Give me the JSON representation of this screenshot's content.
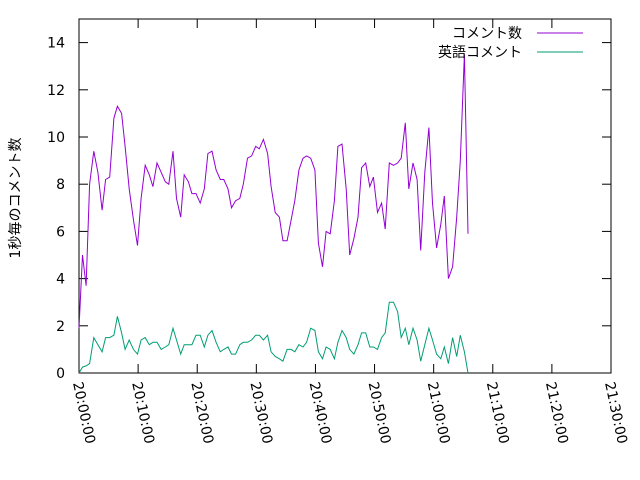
{
  "chart_data": {
    "type": "line",
    "ylabel": "1秒毎のコメント数",
    "ylim": [
      0,
      15
    ],
    "yticks": [
      "0",
      "2",
      "4",
      "6",
      "8",
      "10",
      "12",
      "14"
    ],
    "xlim_minutes": [
      0,
      90
    ],
    "xticks": [
      "20:00:00",
      "20:10:00",
      "20:20:00",
      "20:30:00",
      "20:40:00",
      "20:50:00",
      "21:00:00",
      "21:10:00",
      "21:20:00",
      "21:30:00"
    ],
    "legend_position": "top-right",
    "grid": false,
    "series": [
      {
        "name": "コメント数",
        "color": "#9400d3",
        "points": [
          [
            0,
            1.9
          ],
          [
            0.6,
            5.0
          ],
          [
            1.2,
            3.7
          ],
          [
            1.8,
            8.0
          ],
          [
            2.5,
            9.4
          ],
          [
            3.2,
            8.5
          ],
          [
            3.9,
            6.9
          ],
          [
            4.5,
            8.2
          ],
          [
            5.2,
            8.3
          ],
          [
            5.9,
            10.8
          ],
          [
            6.5,
            11.3
          ],
          [
            7.2,
            11.0
          ],
          [
            7.8,
            9.6
          ],
          [
            8.5,
            7.8
          ],
          [
            9.2,
            6.5
          ],
          [
            9.9,
            5.4
          ],
          [
            10.5,
            7.4
          ],
          [
            11.2,
            8.8
          ],
          [
            11.9,
            8.4
          ],
          [
            12.5,
            7.9
          ],
          [
            13.2,
            8.9
          ],
          [
            13.9,
            8.5
          ],
          [
            14.6,
            8.1
          ],
          [
            15.2,
            8.0
          ],
          [
            15.9,
            9.4
          ],
          [
            16.5,
            7.4
          ],
          [
            17.2,
            6.6
          ],
          [
            17.8,
            8.4
          ],
          [
            18.5,
            8.1
          ],
          [
            19.1,
            7.6
          ],
          [
            19.8,
            7.6
          ],
          [
            20.5,
            7.2
          ],
          [
            21.2,
            7.8
          ],
          [
            21.8,
            9.3
          ],
          [
            22.5,
            9.4
          ],
          [
            23.2,
            8.6
          ],
          [
            23.9,
            8.2
          ],
          [
            24.5,
            8.2
          ],
          [
            25.2,
            7.8
          ],
          [
            25.8,
            7.0
          ],
          [
            26.5,
            7.3
          ],
          [
            27.2,
            7.4
          ],
          [
            27.8,
            8.0
          ],
          [
            28.5,
            9.1
          ],
          [
            29.2,
            9.2
          ],
          [
            29.9,
            9.6
          ],
          [
            30.5,
            9.5
          ],
          [
            31.2,
            9.9
          ],
          [
            31.9,
            9.3
          ],
          [
            32.5,
            7.9
          ],
          [
            33.2,
            6.8
          ],
          [
            33.9,
            6.6
          ],
          [
            34.5,
            5.6
          ],
          [
            35.2,
            5.6
          ],
          [
            35.9,
            6.5
          ],
          [
            36.5,
            7.3
          ],
          [
            37.2,
            8.6
          ],
          [
            37.9,
            9.1
          ],
          [
            38.5,
            9.2
          ],
          [
            39.2,
            9.1
          ],
          [
            39.9,
            8.6
          ],
          [
            40.5,
            5.5
          ],
          [
            41.2,
            4.5
          ],
          [
            41.8,
            6.0
          ],
          [
            42.5,
            5.9
          ],
          [
            43.2,
            7.3
          ],
          [
            43.8,
            9.6
          ],
          [
            44.5,
            9.7
          ],
          [
            45.2,
            7.8
          ],
          [
            45.8,
            5.0
          ],
          [
            46.5,
            5.7
          ],
          [
            47.2,
            6.6
          ],
          [
            47.8,
            8.7
          ],
          [
            48.5,
            8.9
          ],
          [
            49.2,
            7.9
          ],
          [
            49.8,
            8.3
          ],
          [
            50.5,
            6.8
          ],
          [
            51.2,
            7.2
          ],
          [
            51.8,
            6.1
          ],
          [
            52.5,
            8.9
          ],
          [
            53.2,
            8.8
          ],
          [
            53.9,
            8.9
          ],
          [
            54.5,
            9.1
          ],
          [
            55.2,
            10.6
          ],
          [
            55.8,
            7.8
          ],
          [
            56.5,
            8.9
          ],
          [
            57.2,
            8.2
          ],
          [
            57.8,
            5.2
          ],
          [
            58.5,
            8.5
          ],
          [
            59.2,
            10.4
          ],
          [
            59.8,
            7.2
          ],
          [
            60.5,
            5.3
          ],
          [
            61.2,
            6.3
          ],
          [
            61.8,
            7.5
          ],
          [
            62.5,
            4.0
          ],
          [
            63.2,
            4.5
          ],
          [
            63.9,
            6.6
          ],
          [
            64.5,
            9.0
          ],
          [
            65.2,
            13.5
          ],
          [
            65.8,
            5.9
          ]
        ]
      },
      {
        "name": "英語コメント",
        "color": "#009e73",
        "points": [
          [
            0,
            0
          ],
          [
            0.6,
            0.25
          ],
          [
            1.2,
            0.3
          ],
          [
            1.8,
            0.4
          ],
          [
            2.5,
            1.5
          ],
          [
            3.2,
            1.2
          ],
          [
            3.9,
            0.9
          ],
          [
            4.5,
            1.5
          ],
          [
            5.2,
            1.5
          ],
          [
            5.9,
            1.6
          ],
          [
            6.5,
            2.4
          ],
          [
            7.2,
            1.7
          ],
          [
            7.8,
            1.0
          ],
          [
            8.5,
            1.4
          ],
          [
            9.2,
            1.0
          ],
          [
            9.9,
            0.8
          ],
          [
            10.5,
            1.4
          ],
          [
            11.2,
            1.5
          ],
          [
            11.9,
            1.2
          ],
          [
            12.5,
            1.3
          ],
          [
            13.2,
            1.3
          ],
          [
            13.9,
            1.0
          ],
          [
            14.6,
            1.1
          ],
          [
            15.2,
            1.2
          ],
          [
            15.9,
            1.9
          ],
          [
            16.5,
            1.4
          ],
          [
            17.2,
            0.8
          ],
          [
            17.8,
            1.2
          ],
          [
            18.5,
            1.2
          ],
          [
            19.1,
            1.2
          ],
          [
            19.8,
            1.6
          ],
          [
            20.5,
            1.6
          ],
          [
            21.2,
            1.1
          ],
          [
            21.8,
            1.6
          ],
          [
            22.5,
            1.8
          ],
          [
            23.2,
            1.3
          ],
          [
            23.9,
            0.9
          ],
          [
            24.5,
            1.0
          ],
          [
            25.2,
            1.1
          ],
          [
            25.8,
            0.8
          ],
          [
            26.5,
            0.8
          ],
          [
            27.2,
            1.2
          ],
          [
            27.8,
            1.3
          ],
          [
            28.5,
            1.3
          ],
          [
            29.2,
            1.4
          ],
          [
            29.9,
            1.6
          ],
          [
            30.5,
            1.6
          ],
          [
            31.2,
            1.4
          ],
          [
            31.9,
            1.6
          ],
          [
            32.5,
            0.9
          ],
          [
            33.2,
            0.7
          ],
          [
            33.9,
            0.6
          ],
          [
            34.5,
            0.5
          ],
          [
            35.2,
            1.0
          ],
          [
            35.9,
            1.0
          ],
          [
            36.5,
            0.9
          ],
          [
            37.2,
            1.2
          ],
          [
            37.9,
            1.1
          ],
          [
            38.5,
            1.3
          ],
          [
            39.2,
            1.9
          ],
          [
            39.9,
            1.8
          ],
          [
            40.5,
            0.9
          ],
          [
            41.2,
            0.6
          ],
          [
            41.8,
            1.1
          ],
          [
            42.5,
            1.0
          ],
          [
            43.2,
            0.6
          ],
          [
            43.8,
            1.3
          ],
          [
            44.5,
            1.8
          ],
          [
            45.2,
            1.5
          ],
          [
            45.8,
            1.0
          ],
          [
            46.5,
            0.8
          ],
          [
            47.2,
            1.2
          ],
          [
            47.8,
            1.7
          ],
          [
            48.5,
            1.7
          ],
          [
            49.2,
            1.1
          ],
          [
            49.8,
            1.1
          ],
          [
            50.5,
            1.0
          ],
          [
            51.2,
            1.5
          ],
          [
            51.8,
            1.7
          ],
          [
            52.5,
            3.0
          ],
          [
            53.2,
            3.0
          ],
          [
            53.9,
            2.6
          ],
          [
            54.5,
            1.5
          ],
          [
            55.2,
            1.9
          ],
          [
            55.8,
            1.2
          ],
          [
            56.5,
            1.9
          ],
          [
            57.2,
            1.4
          ],
          [
            57.8,
            0.5
          ],
          [
            58.5,
            1.2
          ],
          [
            59.2,
            1.9
          ],
          [
            59.8,
            1.4
          ],
          [
            60.5,
            0.8
          ],
          [
            61.2,
            0.6
          ],
          [
            61.8,
            1.1
          ],
          [
            62.5,
            0.4
          ],
          [
            63.2,
            1.5
          ],
          [
            63.9,
            0.7
          ],
          [
            64.5,
            1.6
          ],
          [
            65.2,
            0.9
          ],
          [
            65.8,
            0
          ]
        ]
      }
    ]
  }
}
